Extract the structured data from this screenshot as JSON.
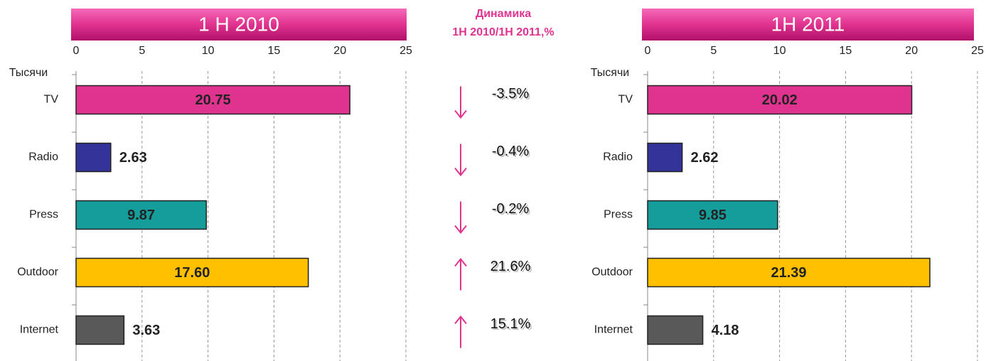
{
  "chart_data": [
    {
      "type": "bar",
      "orientation": "horizontal",
      "title": "1 H 2010",
      "xlabel": "Тысячи",
      "categories": [
        "TV",
        "Radio",
        "Press",
        "Outdoor",
        "Internet"
      ],
      "values": [
        20.75,
        2.63,
        9.87,
        17.6,
        3.63
      ],
      "value_labels": [
        "20.75",
        "2.63",
        "9.87",
        "17.60",
        "3.63"
      ],
      "colors": [
        "#e0338f",
        "#333399",
        "#159d9b",
        "#ffc000",
        "#595959"
      ],
      "xlim": [
        0,
        25
      ],
      "xticks": [
        0,
        5,
        10,
        15,
        20,
        25
      ],
      "grid": true
    },
    {
      "type": "bar",
      "orientation": "horizontal",
      "title": "1H 2011",
      "xlabel": "Тысячи",
      "categories": [
        "TV",
        "Radio",
        "Press",
        "Outdoor",
        "Internet"
      ],
      "values": [
        20.02,
        2.62,
        9.85,
        21.39,
        4.18
      ],
      "value_labels": [
        "20.02",
        "2.62",
        "9.85",
        "21.39",
        "4.18"
      ],
      "colors": [
        "#e0338f",
        "#333399",
        "#159d9b",
        "#ffc000",
        "#595959"
      ],
      "xlim": [
        0,
        25
      ],
      "xticks": [
        0,
        5,
        10,
        15,
        20,
        25
      ],
      "grid": true
    }
  ],
  "dynamics": {
    "title": [
      "Динамика",
      "1Н 2010/1Н 2011,%"
    ],
    "values": [
      -3.5,
      -0.4,
      -0.2,
      21.6,
      15.1
    ],
    "value_labels": [
      "-3.5%",
      "-0.4%",
      "-0.2%",
      "21.6%",
      "15.1%"
    ],
    "color": "#e0338f"
  }
}
